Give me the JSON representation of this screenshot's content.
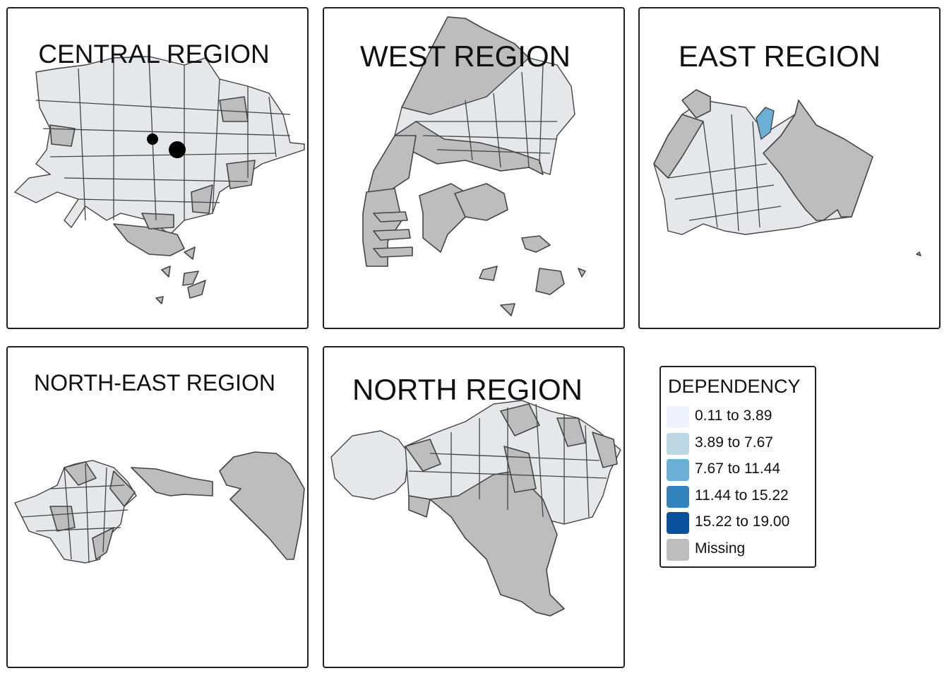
{
  "panels": {
    "central": {
      "title": "CENTRAL REGION"
    },
    "west": {
      "title": "WEST REGION"
    },
    "east": {
      "title": "EAST REGION"
    },
    "north_east": {
      "title": "NORTH-EAST REGION"
    },
    "north": {
      "title": "NORTH REGION"
    }
  },
  "legend": {
    "title": "DEPENDENCY",
    "items": [
      {
        "label": "0.11 to 3.89",
        "color": "#eff3ff"
      },
      {
        "label": "3.89 to 7.67",
        "color": "#bdd7e7"
      },
      {
        "label": "7.67 to 11.44",
        "color": "#6baed6"
      },
      {
        "label": "11.44 to 15.22",
        "color": "#3182bd"
      },
      {
        "label": "15.22 to 19.00",
        "color": "#08519c"
      },
      {
        "label": "Missing",
        "color": "#bdbdbd"
      }
    ]
  },
  "colors": {
    "no_data_fill": "#bdbdbd",
    "low_fill": "#e6e7eb",
    "boundary": "#444444"
  }
}
